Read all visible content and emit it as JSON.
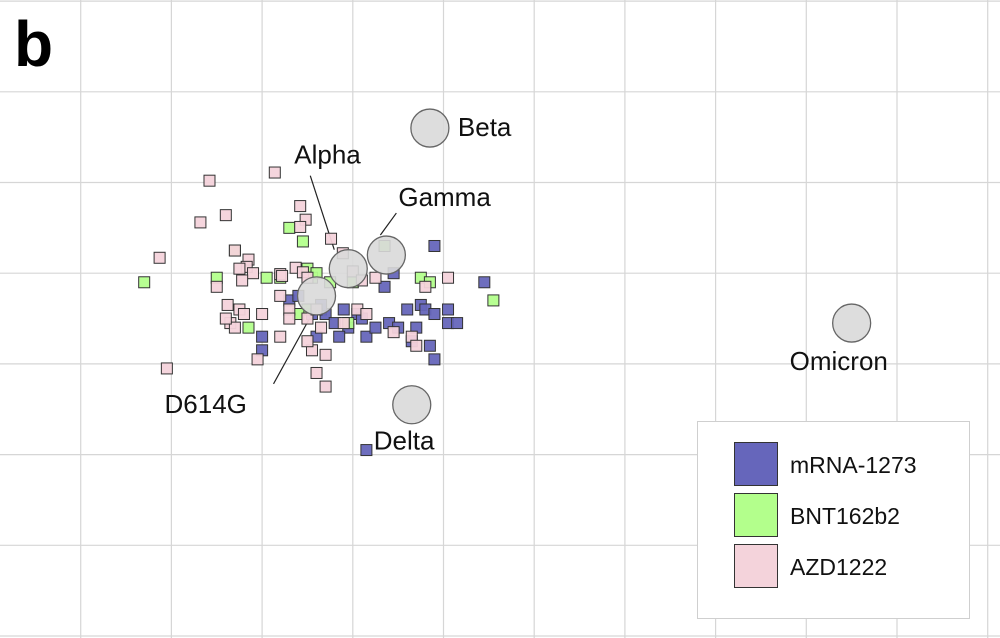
{
  "panel_label": "b",
  "chart_data": {
    "type": "scatter",
    "title": "",
    "xlabel": "",
    "ylabel": "",
    "xlim": [
      0,
      11
    ],
    "ylim": [
      0,
      7
    ],
    "grid": true,
    "legend_position": "bottom-right",
    "antigens": [
      {
        "name": "Beta",
        "x": 4.85,
        "y": 5.6
      },
      {
        "name": "Gamma",
        "x": 4.37,
        "y": 4.2
      },
      {
        "name": "Alpha",
        "x": 3.95,
        "y": 4.05
      },
      {
        "name": "D614G",
        "x": 3.6,
        "y": 3.75
      },
      {
        "name": "Delta",
        "x": 4.65,
        "y": 2.55
      },
      {
        "name": "Omicron",
        "x": 9.5,
        "y": 3.45
      }
    ],
    "series": [
      {
        "name": "mRNA-1273",
        "color": "#6666bb",
        "points": [
          [
            3.3,
            3.7
          ],
          [
            3.55,
            3.55
          ],
          [
            3.65,
            3.6
          ],
          [
            3.7,
            3.55
          ],
          [
            3.8,
            3.45
          ],
          [
            3.9,
            3.6
          ],
          [
            3.95,
            3.4
          ],
          [
            4.05,
            3.55
          ],
          [
            4.1,
            3.5
          ],
          [
            4.15,
            3.3
          ],
          [
            4.25,
            3.4
          ],
          [
            4.4,
            3.45
          ],
          [
            4.45,
            4.0
          ],
          [
            4.35,
            3.85
          ],
          [
            4.6,
            3.6
          ],
          [
            4.75,
            3.65
          ],
          [
            4.8,
            3.6
          ],
          [
            4.9,
            3.55
          ],
          [
            4.85,
            3.2
          ],
          [
            4.7,
            3.4
          ],
          [
            4.5,
            3.4
          ],
          [
            4.65,
            3.25
          ],
          [
            5.05,
            3.45
          ],
          [
            5.15,
            3.45
          ],
          [
            5.05,
            3.6
          ],
          [
            5.45,
            3.9
          ],
          [
            4.9,
            4.3
          ],
          [
            4.9,
            3.05
          ],
          [
            3.0,
            3.3
          ],
          [
            3.0,
            3.15
          ],
          [
            3.6,
            3.3
          ],
          [
            3.85,
            3.3
          ],
          [
            3.65,
            3.65
          ],
          [
            4.15,
            2.05
          ],
          [
            3.4,
            3.75
          ]
        ]
      },
      {
        "name": "BNT162b2",
        "color": "#b3ff8c",
        "points": [
          [
            1.7,
            3.9
          ],
          [
            2.5,
            3.95
          ],
          [
            2.7,
            4.25
          ],
          [
            3.05,
            3.95
          ],
          [
            3.3,
            4.5
          ],
          [
            3.45,
            4.35
          ],
          [
            3.5,
            4.05
          ],
          [
            3.55,
            3.95
          ],
          [
            3.6,
            4.0
          ],
          [
            3.75,
            3.9
          ],
          [
            4.0,
            3.9
          ],
          [
            4.35,
            4.3
          ],
          [
            4.75,
            3.95
          ],
          [
            4.85,
            3.9
          ],
          [
            5.55,
            3.7
          ],
          [
            3.5,
            3.6
          ],
          [
            3.4,
            3.55
          ],
          [
            2.85,
            3.4
          ],
          [
            3.95,
            3.45
          ],
          [
            3.2,
            3.95
          ]
        ]
      },
      {
        "name": "AZD1222",
        "color": "#f4d3db",
        "points": [
          [
            2.42,
            5.02
          ],
          [
            3.14,
            5.11
          ],
          [
            2.32,
            4.56
          ],
          [
            2.6,
            4.64
          ],
          [
            3.42,
            4.74
          ],
          [
            3.48,
            4.59
          ],
          [
            3.42,
            4.51
          ],
          [
            1.87,
            4.17
          ],
          [
            2.7,
            4.25
          ],
          [
            2.85,
            4.15
          ],
          [
            2.83,
            4.07
          ],
          [
            2.9,
            4.0
          ],
          [
            2.75,
            4.05
          ],
          [
            2.78,
            3.92
          ],
          [
            3.2,
            3.99
          ],
          [
            3.22,
            3.97
          ],
          [
            3.37,
            4.06
          ],
          [
            3.45,
            4.01
          ],
          [
            3.5,
            3.95
          ],
          [
            3.76,
            4.38
          ],
          [
            3.89,
            4.22
          ],
          [
            4.0,
            4.02
          ],
          [
            4.1,
            3.92
          ],
          [
            4.25,
            3.95
          ],
          [
            5.05,
            3.95
          ],
          [
            4.8,
            3.85
          ],
          [
            2.5,
            3.85
          ],
          [
            2.62,
            3.65
          ],
          [
            2.75,
            3.6
          ],
          [
            2.65,
            3.45
          ],
          [
            2.7,
            3.4
          ],
          [
            2.6,
            3.5
          ],
          [
            2.8,
            3.55
          ],
          [
            3.0,
            3.55
          ],
          [
            3.2,
            3.75
          ],
          [
            3.3,
            3.6
          ],
          [
            3.5,
            3.5
          ],
          [
            3.6,
            3.6
          ],
          [
            3.65,
            3.4
          ],
          [
            4.05,
            3.6
          ],
          [
            4.15,
            3.55
          ],
          [
            4.45,
            3.35
          ],
          [
            4.65,
            3.3
          ],
          [
            4.7,
            3.2
          ],
          [
            3.55,
            3.15
          ],
          [
            3.5,
            3.25
          ],
          [
            3.7,
            3.1
          ],
          [
            3.6,
            2.9
          ],
          [
            3.7,
            2.75
          ],
          [
            2.95,
            3.05
          ],
          [
            3.2,
            3.3
          ],
          [
            1.95,
            2.95
          ],
          [
            3.3,
            3.5
          ],
          [
            3.9,
            3.45
          ]
        ]
      }
    ]
  }
}
